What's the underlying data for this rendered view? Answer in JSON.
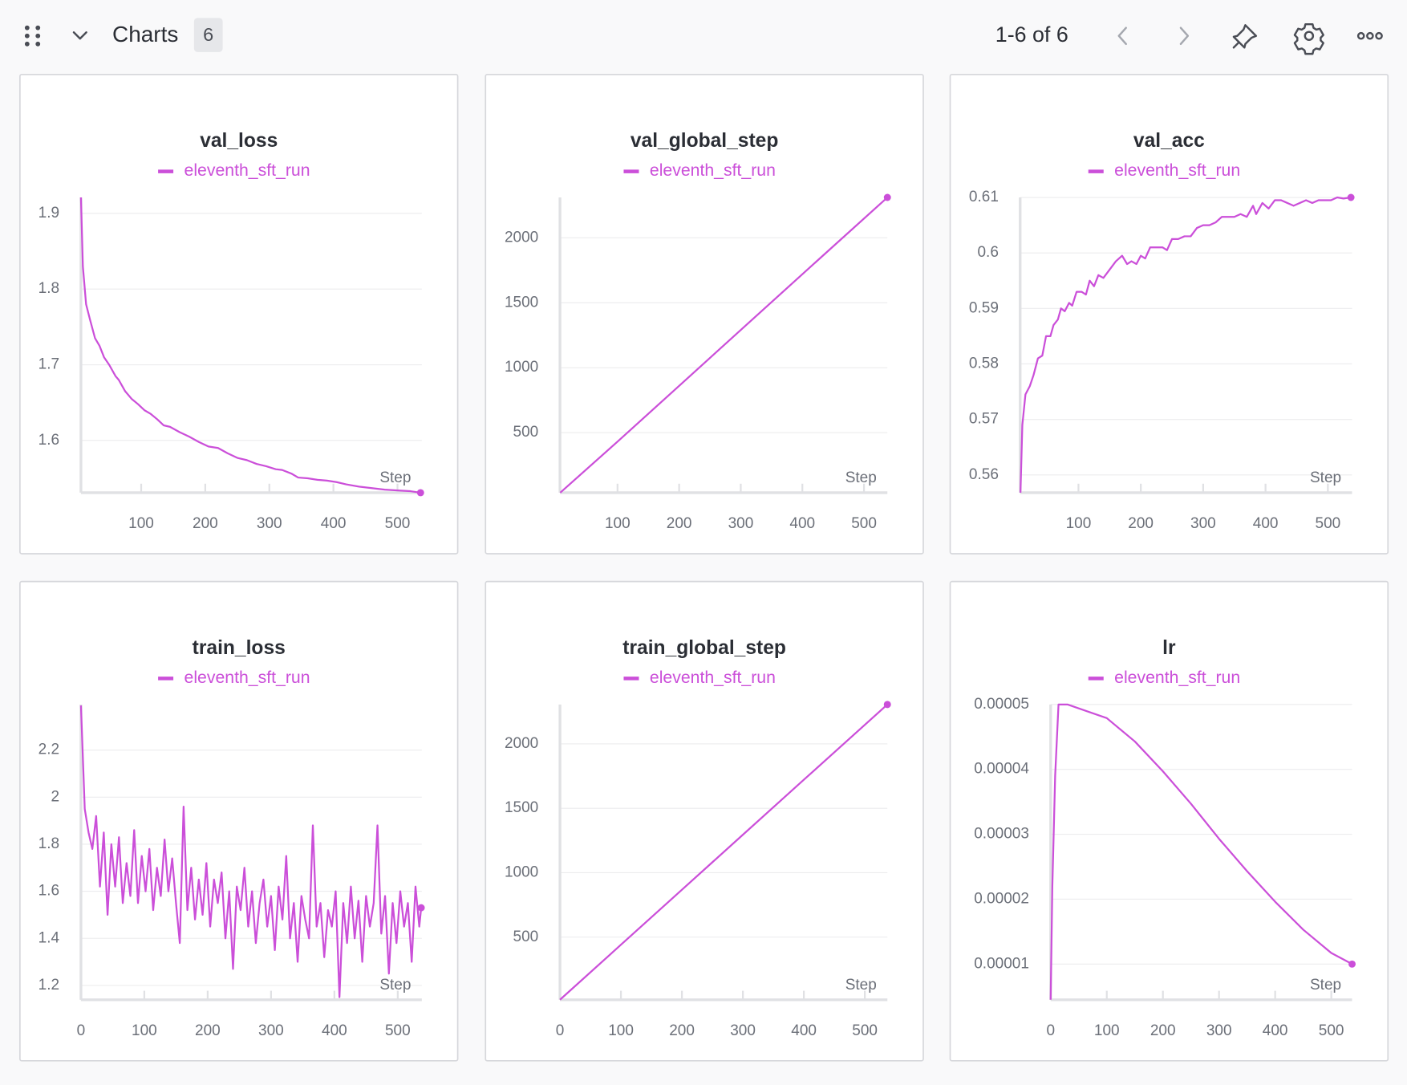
{
  "header": {
    "title": "Charts",
    "count": 6,
    "pagination": "1-6 of 6"
  },
  "chart_data": [
    {
      "type": "line",
      "title": "val_loss",
      "xlabel": "Step",
      "x": [
        6,
        9,
        14,
        20,
        28,
        35,
        42,
        50,
        60,
        65,
        75,
        85,
        95,
        105,
        115,
        125,
        135,
        145,
        160,
        175,
        190,
        205,
        220,
        235,
        250,
        265,
        280,
        295,
        310,
        320,
        335,
        345,
        360,
        375,
        390,
        405,
        420,
        440,
        460,
        480,
        500,
        520,
        536
      ],
      "series": [
        {
          "name": "eleventh_sft_run",
          "color": "#cb4fd9",
          "values": [
            1.921,
            1.83,
            1.78,
            1.76,
            1.735,
            1.725,
            1.71,
            1.7,
            1.685,
            1.68,
            1.665,
            1.655,
            1.648,
            1.64,
            1.635,
            1.628,
            1.62,
            1.618,
            1.611,
            1.605,
            1.598,
            1.592,
            1.59,
            1.583,
            1.577,
            1.574,
            1.569,
            1.566,
            1.562,
            1.561,
            1.556,
            1.551,
            1.55,
            1.548,
            1.547,
            1.545,
            1.542,
            1.539,
            1.537,
            1.535,
            1.534,
            1.533,
            1.531
          ]
        }
      ],
      "xlim": [
        6,
        538
      ],
      "ylim": [
        1.531,
        1.921
      ],
      "xticks": [
        100,
        200,
        300,
        400,
        500
      ],
      "yticks": [
        1.6,
        1.7,
        1.8,
        1.9
      ]
    },
    {
      "type": "line",
      "title": "val_global_step",
      "xlabel": "Step",
      "x": [
        7,
        100,
        200,
        300,
        400,
        538
      ],
      "series": [
        {
          "name": "eleventh_sft_run",
          "color": "#cb4fd9",
          "values": [
            37,
            430,
            860,
            1290,
            1720,
            2311
          ]
        }
      ],
      "xlim": [
        6.6,
        538
      ],
      "ylim": [
        37,
        2311
      ],
      "xticks": [
        100,
        200,
        300,
        400,
        500
      ],
      "yticks": [
        500,
        1000,
        1500,
        2000
      ]
    },
    {
      "type": "line",
      "title": "val_acc",
      "xlabel": "Step",
      "x": [
        7,
        10,
        15,
        22,
        28,
        35,
        42,
        48,
        55,
        60,
        67,
        72,
        78,
        85,
        90,
        97,
        105,
        112,
        118,
        125,
        132,
        140,
        150,
        160,
        170,
        178,
        185,
        193,
        200,
        207,
        215,
        225,
        235,
        242,
        250,
        260,
        270,
        280,
        290,
        300,
        310,
        320,
        330,
        340,
        350,
        360,
        370,
        380,
        385,
        395,
        405,
        415,
        425,
        435,
        445,
        455,
        465,
        475,
        485,
        495,
        505,
        515,
        525,
        537
      ],
      "series": [
        {
          "name": "eleventh_sft_run",
          "color": "#cb4fd9",
          "values": [
            0.5568,
            0.569,
            0.5745,
            0.576,
            0.578,
            0.581,
            0.5815,
            0.585,
            0.585,
            0.587,
            0.588,
            0.59,
            0.5895,
            0.591,
            0.5905,
            0.593,
            0.593,
            0.5925,
            0.595,
            0.594,
            0.596,
            0.5955,
            0.597,
            0.5985,
            0.5995,
            0.598,
            0.5985,
            0.598,
            0.5995,
            0.599,
            0.601,
            0.601,
            0.601,
            0.6005,
            0.6025,
            0.6025,
            0.603,
            0.603,
            0.6045,
            0.605,
            0.605,
            0.6055,
            0.6065,
            0.6065,
            0.6065,
            0.607,
            0.6065,
            0.6085,
            0.607,
            0.609,
            0.608,
            0.6095,
            0.6095,
            0.609,
            0.6085,
            0.609,
            0.6095,
            0.609,
            0.6095,
            0.6095,
            0.6095,
            0.61,
            0.6098,
            0.61
          ]
        }
      ],
      "xlim": [
        6.5,
        538.8
      ],
      "ylim": [
        0.5568,
        0.61
      ],
      "xticks": [
        100,
        200,
        300,
        400,
        500
      ],
      "yticks": [
        0.56,
        0.57,
        0.58,
        0.59,
        0.6,
        0.61
      ]
    },
    {
      "type": "line",
      "title": "train_loss",
      "xlabel": "Step",
      "x": [
        0,
        6,
        12,
        18,
        24,
        30,
        36,
        42,
        48,
        54,
        60,
        66,
        72,
        78,
        84,
        90,
        96,
        102,
        108,
        114,
        120,
        126,
        132,
        138,
        144,
        150,
        156,
        162,
        168,
        174,
        180,
        186,
        192,
        198,
        204,
        210,
        216,
        222,
        228,
        234,
        240,
        246,
        252,
        258,
        264,
        270,
        276,
        282,
        288,
        294,
        300,
        306,
        312,
        318,
        324,
        330,
        336,
        342,
        348,
        354,
        360,
        366,
        372,
        378,
        384,
        390,
        396,
        402,
        408,
        414,
        420,
        426,
        432,
        438,
        444,
        450,
        456,
        462,
        468,
        474,
        480,
        486,
        492,
        498,
        504,
        510,
        516,
        522,
        528,
        534,
        537
      ],
      "series": [
        {
          "name": "eleventh_sft_run",
          "color": "#cb4fd9",
          "values": [
            2.39,
            1.95,
            1.85,
            1.78,
            1.92,
            1.62,
            1.85,
            1.5,
            1.8,
            1.62,
            1.83,
            1.55,
            1.72,
            1.58,
            1.86,
            1.55,
            1.75,
            1.6,
            1.78,
            1.52,
            1.7,
            1.58,
            1.82,
            1.6,
            1.74,
            1.55,
            1.38,
            1.96,
            1.52,
            1.7,
            1.48,
            1.65,
            1.5,
            1.72,
            1.45,
            1.65,
            1.55,
            1.68,
            1.4,
            1.6,
            1.27,
            1.62,
            1.52,
            1.7,
            1.45,
            1.6,
            1.38,
            1.55,
            1.65,
            1.45,
            1.58,
            1.35,
            1.62,
            1.48,
            1.75,
            1.4,
            1.55,
            1.3,
            1.58,
            1.48,
            1.4,
            1.88,
            1.45,
            1.55,
            1.32,
            1.52,
            1.45,
            1.6,
            1.15,
            1.55,
            1.38,
            1.62,
            1.4,
            1.56,
            1.3,
            1.58,
            1.45,
            1.55,
            1.88,
            1.42,
            1.58,
            1.25,
            1.55,
            1.38,
            1.6,
            1.45,
            1.55,
            1.3,
            1.62,
            1.45,
            1.53
          ]
        }
      ],
      "xlim": [
        0,
        538
      ],
      "ylim": [
        1.139,
        2.394
      ],
      "xticks": [
        0,
        100,
        200,
        300,
        400,
        500
      ],
      "yticks": [
        1.2,
        1.4,
        1.6,
        1.8,
        2,
        2.2
      ]
    },
    {
      "type": "line",
      "title": "train_global_step",
      "xlabel": "Step",
      "x": [
        0,
        100,
        200,
        300,
        400,
        537
      ],
      "series": [
        {
          "name": "eleventh_sft_run",
          "color": "#cb4fd9",
          "values": [
            14,
            441,
            868,
            1295,
            1722,
            2306
          ]
        }
      ],
      "xlim": [
        0,
        537
      ],
      "ylim": [
        14,
        2306
      ],
      "xticks": [
        0,
        100,
        200,
        300,
        400,
        500
      ],
      "yticks": [
        500,
        1000,
        1500,
        2000
      ]
    },
    {
      "type": "line",
      "title": "lr",
      "xlabel": "Step",
      "x": [
        0,
        3,
        8,
        14,
        30,
        50,
        100,
        150,
        200,
        250,
        300,
        350,
        400,
        450,
        500,
        537
      ],
      "series": [
        {
          "name": "eleventh_sft_run",
          "color": "#cb4fd9",
          "values": [
            4.5e-06,
            2.2e-05,
            3.9e-05,
            5e-05,
            5e-05,
            4.94e-05,
            4.79e-05,
            4.43e-05,
            3.97e-05,
            3.47e-05,
            2.93e-05,
            2.43e-05,
            1.96e-05,
            1.53e-05,
            1.17e-05,
            1e-05
          ]
        }
      ],
      "xlim": [
        0,
        537
      ],
      "ylim": [
        4.5e-06,
        5e-05
      ],
      "xticks": [
        0,
        100,
        200,
        300,
        400,
        500
      ],
      "yticks": [
        1e-05,
        2e-05,
        3e-05,
        4e-05,
        5e-05
      ]
    }
  ]
}
